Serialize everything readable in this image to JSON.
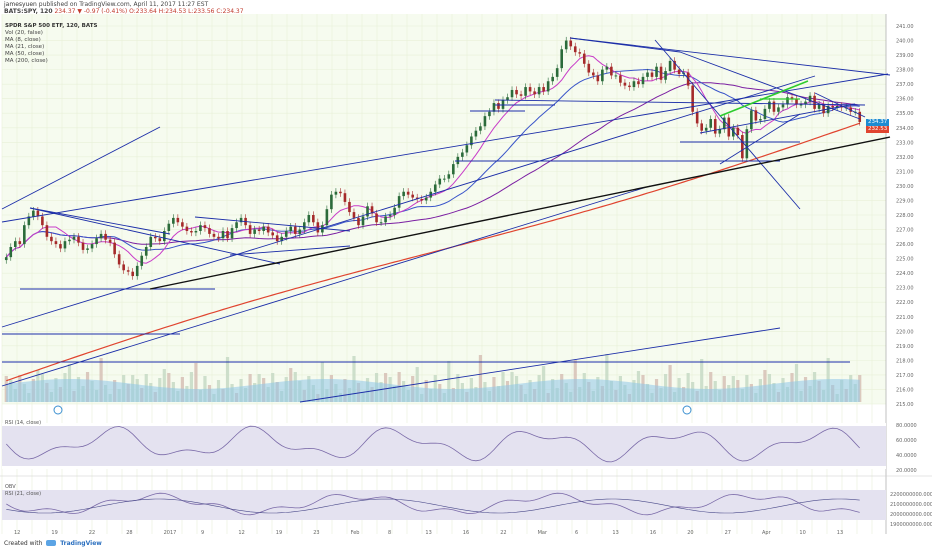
{
  "header": {
    "user": "jamesyuen",
    "published": "published on TradingView.com, April 11, 2017 11:27 EST",
    "symbol": "BATS:SPY, 120",
    "ohlc": "234.37 ▼ -0.97 (-0.41%) O:233.64 H:234.53 L:233.56 C:234.37"
  },
  "legend": {
    "title": "SPDR S&P 500 ETF, 120, BATS",
    "items": [
      "Vol (20, false)",
      "MA (8, close)",
      "MA (21, close)",
      "MA (50, close)",
      "MA (200, close)"
    ]
  },
  "subpanes": {
    "rsi_label": "RSI (14, close)",
    "obv_label": "OBV",
    "rsi2_label": "RSI (21, close)"
  },
  "price_tags": {
    "last": "234.37",
    "ma": "232.53"
  },
  "footer": {
    "created_with": "Created with",
    "brand": "TradingView"
  },
  "colors": {
    "grid": "#e8f0d8",
    "up": "#2b6b3a",
    "down": "#a52a2a",
    "ma8": "#c83cc8",
    "ma21": "#3a55c9",
    "ma50": "#7b1fa2",
    "ma200": "#e0442f",
    "trendline": "#1c2ea8",
    "support": "#111111",
    "green_channel": "#2ecc2e",
    "volume": "#8fc7e8",
    "rsi": "#7a6aa8"
  },
  "chart_data": {
    "type": "candlestick",
    "title": "SPDR S&P 500 ETF, 120, BATS",
    "y_ticks": [
      "241.00",
      "240.00",
      "239.00",
      "238.00",
      "237.00",
      "236.00",
      "235.00",
      "234.00",
      "233.00",
      "232.00",
      "231.00",
      "230.00",
      "229.00",
      "228.00",
      "227.00",
      "226.00",
      "225.00",
      "224.00",
      "223.00",
      "222.00",
      "221.00",
      "220.00",
      "219.00",
      "218.00",
      "217.00",
      "216.00",
      "215.00"
    ],
    "ylim": [
      215,
      241
    ],
    "x_ticks": [
      "12",
      "19",
      "22",
      "28",
      "2017",
      "9",
      "12",
      "19",
      "23",
      "Feb",
      "8",
      "13",
      "16",
      "22",
      "Mar",
      "6",
      "13",
      "16",
      "20",
      "27",
      "Apr",
      "10",
      "13"
    ],
    "rsi_ticks": [
      "80.0000",
      "60.0000",
      "40.0000",
      "20.0000"
    ],
    "obv_ticks": [
      "2200000000.0000",
      "2100000000.0000",
      "2000000000.0000",
      "1900000000.0000"
    ],
    "close": [
      225.1,
      225.8,
      226.2,
      226.0,
      227.3,
      227.9,
      228.3,
      227.9,
      227.3,
      226.5,
      226.2,
      226.0,
      225.7,
      226.2,
      226.3,
      226.5,
      226.1,
      225.6,
      225.7,
      226.0,
      226.4,
      226.7,
      226.3,
      226.1,
      225.3,
      224.6,
      224.2,
      224.1,
      223.8,
      224.5,
      225.2,
      225.8,
      226.5,
      226.4,
      226.2,
      226.9,
      227.4,
      227.8,
      227.5,
      227.2,
      226.9,
      226.8,
      226.9,
      227.3,
      227.1,
      226.7,
      226.5,
      226.4,
      226.9,
      226.4,
      227.1,
      227.5,
      227.8,
      227.3,
      226.7,
      227.0,
      226.9,
      227.2,
      226.8,
      226.6,
      226.2,
      226.5,
      226.9,
      227.2,
      226.7,
      227.0,
      227.5,
      228.0,
      227.5,
      226.8,
      227.3,
      228.4,
      229.4,
      229.6,
      229.5,
      228.9,
      228.2,
      227.8,
      227.3,
      227.9,
      228.6,
      228.1,
      227.5,
      227.5,
      227.9,
      228.0,
      228.5,
      229.3,
      229.6,
      229.4,
      229.2,
      229.1,
      229.0,
      229.2,
      229.6,
      230.1,
      230.5,
      230.5,
      230.8,
      231.5,
      232.0,
      232.3,
      232.8,
      233.4,
      233.8,
      234.1,
      234.8,
      235.1,
      235.7,
      235.3,
      235.9,
      236.1,
      236.6,
      236.3,
      236.2,
      236.8,
      236.5,
      236.3,
      236.8,
      236.5,
      237.2,
      237.5,
      238.1,
      239.4,
      240.0,
      239.6,
      239.2,
      239.1,
      238.4,
      237.8,
      237.6,
      237.2,
      238.0,
      238.2,
      237.6,
      237.6,
      237.1,
      236.9,
      236.8,
      237.2,
      237.0,
      237.5,
      237.8,
      237.5,
      238.2,
      237.3,
      237.9,
      238.6,
      238.0,
      237.7,
      237.8,
      236.9,
      235.1,
      234.3,
      233.8,
      234.0,
      234.6,
      233.6,
      233.9,
      234.7,
      233.4,
      234.0,
      233.5,
      231.9,
      233.9,
      235.2,
      234.5,
      234.6,
      235.3,
      235.8,
      235.1,
      235.4,
      235.6,
      236.1,
      236.0,
      235.6,
      235.6,
      235.8,
      236.2,
      235.3,
      235.6,
      235.0,
      235.5,
      235.4,
      235.5,
      235.4,
      235.4,
      235.1,
      235.1,
      234.4
    ]
  }
}
